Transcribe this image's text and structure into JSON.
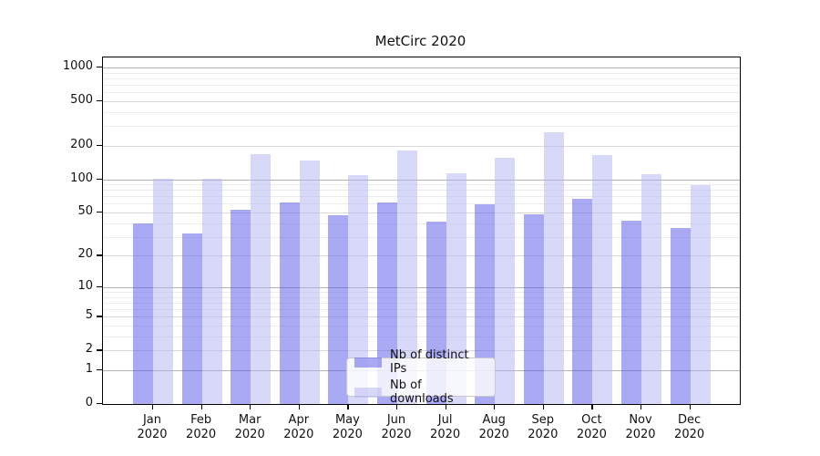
{
  "chart_data": {
    "type": "bar",
    "title": "MetCirc 2020",
    "categories": [
      "Jan",
      "Feb",
      "Mar",
      "Apr",
      "May",
      "Jun",
      "Jul",
      "Aug",
      "Sep",
      "Oct",
      "Nov",
      "Dec"
    ],
    "category_second_line": "2020",
    "series": [
      {
        "name": "Nb of distinct IPs",
        "color": "rgba(83,83,233,0.5)",
        "color_hex_on_white": "#a9a9f4",
        "values": [
          40,
          32,
          53,
          62,
          47,
          62,
          41,
          59,
          48,
          66,
          42,
          36
        ]
      },
      {
        "name": "Nb of downloads",
        "color": "rgba(177,177,241,0.5)",
        "color_hex_on_white": "#d8d8f8",
        "values": [
          102,
          102,
          167,
          147,
          110,
          180,
          113,
          156,
          264,
          164,
          112,
          89
        ]
      }
    ],
    "xlabel": "",
    "ylabel": "",
    "yscale": "log1p",
    "y_ticks": [
      0,
      1,
      2,
      5,
      10,
      20,
      50,
      100,
      200,
      500,
      1000
    ],
    "ylim": [
      0,
      1230
    ],
    "grid": "horizontal, major gridlines at powers of ten, light gridlines at 2-9 multiples",
    "legend_position": "inside axes, lower center"
  }
}
